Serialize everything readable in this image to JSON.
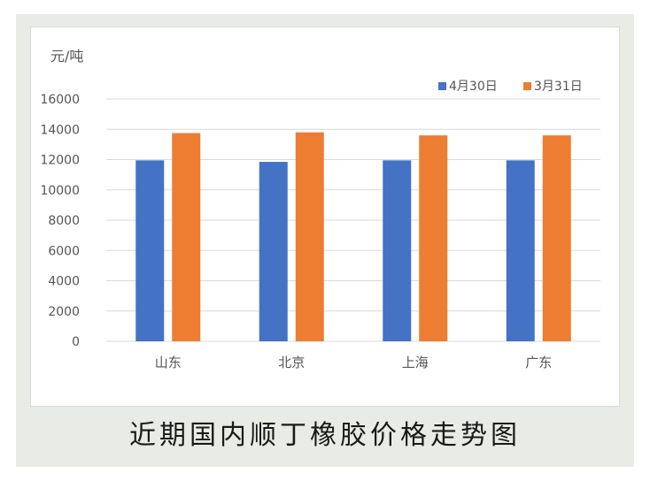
{
  "chart_data": {
    "type": "bar",
    "unit_label": "元/吨",
    "categories": [
      "山东",
      "北京",
      "上海",
      "广东"
    ],
    "series": [
      {
        "name": "4月30日",
        "values": [
          11950,
          11850,
          11950,
          11950
        ]
      },
      {
        "name": "3月31日",
        "values": [
          13750,
          13800,
          13600,
          13600
        ]
      }
    ],
    "ylim": [
      0,
      16000
    ],
    "yticks": [
      0,
      2000,
      4000,
      6000,
      8000,
      10000,
      12000,
      14000,
      16000
    ],
    "grid": true,
    "legend_position": "top-right"
  },
  "colors": {
    "series1": "#4472c4",
    "series2": "#ed7d31",
    "grid": "#d9d9d9"
  },
  "caption": "近期国内顺丁橡胶价格走势图"
}
